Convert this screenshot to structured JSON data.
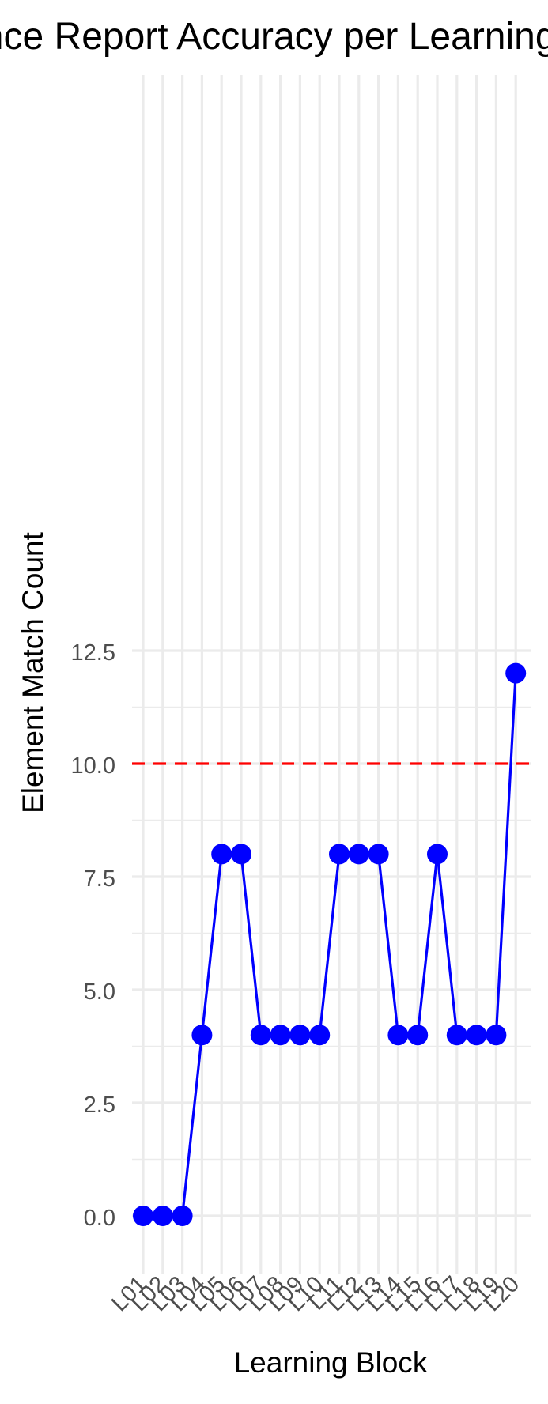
{
  "chart_data": {
    "type": "line",
    "title": "Evidence Report Accuracy per Learning Block",
    "xlabel": "Learning Block",
    "ylabel": "Element Match Count",
    "categories": [
      "L01",
      "L02",
      "L03",
      "L04",
      "L05",
      "L06",
      "L07",
      "L08",
      "L09",
      "L10",
      "L11",
      "L12",
      "L13",
      "L14",
      "L15",
      "L16",
      "L17",
      "L18",
      "L19",
      "L20"
    ],
    "series": [
      {
        "values": [
          0,
          0,
          0,
          4,
          8,
          8,
          4,
          4,
          4,
          4,
          8,
          8,
          8,
          4,
          4,
          8,
          4,
          4,
          4,
          12
        ],
        "color": "#0000ff"
      }
    ],
    "reference_line": {
      "y": 10,
      "color": "#ff0000",
      "style": "dashed"
    },
    "yticks": [
      0,
      2.5,
      5,
      7.5,
      10,
      12.5
    ],
    "ytick_labels": [
      "0.0",
      "2.5",
      "5.0",
      "7.5",
      "10.0",
      "12.5"
    ],
    "ylim": [
      -0.625,
      12.625
    ],
    "grid": true,
    "legend": "none"
  }
}
